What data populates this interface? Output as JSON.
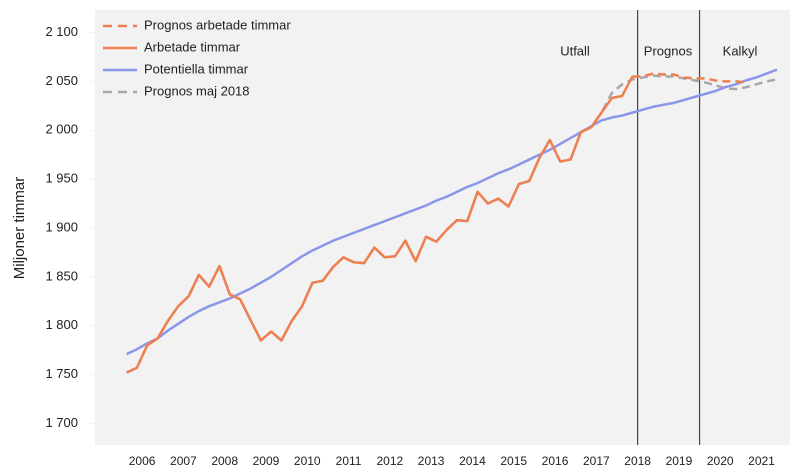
{
  "chart_data": {
    "type": "line",
    "ylabel": "Miljoner timmar",
    "annotations": [
      "Utfall",
      "Prognos",
      "Kalkyl"
    ],
    "vlines": [
      2018.5,
      2020
    ],
    "xlim": [
      2005.36,
      2022.19
    ],
    "ylim": [
      1678,
      2123
    ],
    "xticks": [
      {
        "value": 2006.5,
        "label": "2006"
      },
      {
        "value": 2007.5,
        "label": "2007"
      },
      {
        "value": 2008.5,
        "label": "2008"
      },
      {
        "value": 2009.5,
        "label": "2009"
      },
      {
        "value": 2010.5,
        "label": "2010"
      },
      {
        "value": 2011.5,
        "label": "2011"
      },
      {
        "value": 2012.5,
        "label": "2012"
      },
      {
        "value": 2013.5,
        "label": "2013"
      },
      {
        "value": 2014.5,
        "label": "2014"
      },
      {
        "value": 2015.5,
        "label": "2015"
      },
      {
        "value": 2016.5,
        "label": "2016"
      },
      {
        "value": 2017.5,
        "label": "2017"
      },
      {
        "value": 2018.5,
        "label": "2018"
      },
      {
        "value": 2019.5,
        "label": "2019"
      },
      {
        "value": 2020.5,
        "label": "2020"
      },
      {
        "value": 2021.5,
        "label": "2021"
      }
    ],
    "yticks": [
      {
        "value": 1700,
        "label": "1 700"
      },
      {
        "value": 1750,
        "label": "1 750"
      },
      {
        "value": 1800,
        "label": "1 800"
      },
      {
        "value": 1850,
        "label": "1 850"
      },
      {
        "value": 1900,
        "label": "1 900"
      },
      {
        "value": 1950,
        "label": "1 950"
      },
      {
        "value": 2000,
        "label": "2 000"
      },
      {
        "value": 2050,
        "label": "2 050"
      },
      {
        "value": 2100,
        "label": "2 100"
      }
    ],
    "grid": false,
    "legend": "upper left",
    "series": [
      {
        "name": "Prognos arbetade timmar",
        "color": "#f07f50",
        "dashed": true,
        "x": [
          2018.375,
          2018.625,
          2018.875,
          2019.125,
          2019.375,
          2019.625,
          2019.875,
          2020.125,
          2020.375,
          2020.625,
          2020.875,
          2021.125
        ],
        "values": [
          2055,
          2055,
          2058,
          2057,
          2057,
          2054,
          2053,
          2053,
          2051,
          2050,
          2050,
          2049
        ]
      },
      {
        "name": "Arbetade timmar",
        "color": "#f07f50",
        "dashed": false,
        "x": [
          2006.125,
          2006.375,
          2006.625,
          2006.875,
          2007.125,
          2007.375,
          2007.625,
          2007.875,
          2008.125,
          2008.375,
          2008.625,
          2008.875,
          2009.125,
          2009.375,
          2009.625,
          2009.875,
          2010.125,
          2010.375,
          2010.625,
          2010.875,
          2011.125,
          2011.375,
          2011.625,
          2011.875,
          2012.125,
          2012.375,
          2012.625,
          2012.875,
          2013.125,
          2013.375,
          2013.625,
          2013.875,
          2014.125,
          2014.375,
          2014.625,
          2014.875,
          2015.125,
          2015.375,
          2015.625,
          2015.875,
          2016.125,
          2016.375,
          2016.625,
          2016.875,
          2017.125,
          2017.375,
          2017.625,
          2017.875,
          2018.125,
          2018.375
        ],
        "values": [
          1752,
          1757,
          1780,
          1787,
          1805,
          1820,
          1830,
          1852,
          1840,
          1861,
          1832,
          1827,
          1806,
          1785,
          1794,
          1785,
          1805,
          1820,
          1844,
          1846,
          1860,
          1870,
          1865,
          1864,
          1880,
          1870,
          1871,
          1887,
          1866,
          1891,
          1886,
          1898,
          1908,
          1907,
          1937,
          1925,
          1930,
          1922,
          1945,
          1948,
          1972,
          1990,
          1968,
          1970,
          1998,
          2003,
          2018,
          2033,
          2035,
          2055
        ]
      },
      {
        "name": "Potentiella timmar",
        "color": "#8c96e8",
        "dashed": false,
        "x": [
          2006.125,
          2006.375,
          2006.625,
          2006.875,
          2007.125,
          2007.375,
          2007.625,
          2007.875,
          2008.125,
          2008.375,
          2008.625,
          2008.875,
          2009.125,
          2009.375,
          2009.625,
          2009.875,
          2010.125,
          2010.375,
          2010.625,
          2010.875,
          2011.125,
          2011.375,
          2011.625,
          2011.875,
          2012.125,
          2012.375,
          2012.625,
          2012.875,
          2013.125,
          2013.375,
          2013.625,
          2013.875,
          2014.125,
          2014.375,
          2014.625,
          2014.875,
          2015.125,
          2015.375,
          2015.625,
          2015.875,
          2016.125,
          2016.375,
          2016.625,
          2016.875,
          2017.125,
          2017.375,
          2017.625,
          2017.875,
          2018.125,
          2018.375,
          2018.625,
          2018.875,
          2019.125,
          2019.375,
          2019.625,
          2019.875,
          2020.125,
          2020.375,
          2020.625,
          2020.875,
          2021.125,
          2021.375,
          2021.625,
          2021.875
        ],
        "values": [
          1771,
          1776,
          1782,
          1787,
          1795,
          1802,
          1809,
          1815,
          1820,
          1824,
          1828,
          1833,
          1838,
          1844,
          1850,
          1857,
          1864,
          1871,
          1877,
          1882,
          1887,
          1891,
          1895,
          1899,
          1903,
          1907,
          1911,
          1915,
          1919,
          1923,
          1928,
          1932,
          1937,
          1942,
          1946,
          1951,
          1956,
          1960,
          1965,
          1970,
          1975,
          1980,
          1986,
          1992,
          1998,
          2004,
          2010,
          2013,
          2015,
          2018,
          2021,
          2024,
          2026,
          2028,
          2031,
          2034,
          2037,
          2040,
          2044,
          2047,
          2051,
          2054,
          2058,
          2062
        ]
      },
      {
        "name": "Prognos maj 2018",
        "color": "#a8a8a8",
        "dashed": true,
        "x": [
          2006.125,
          2006.375,
          2006.625,
          2006.875,
          2007.125,
          2007.375,
          2007.625,
          2007.875,
          2008.125,
          2008.375,
          2008.625,
          2008.875,
          2009.125,
          2009.375,
          2009.625,
          2009.875,
          2010.125,
          2010.375,
          2010.625,
          2010.875,
          2011.125,
          2011.375,
          2011.625,
          2011.875,
          2012.125,
          2012.375,
          2012.625,
          2012.875,
          2013.125,
          2013.375,
          2013.625,
          2013.875,
          2014.125,
          2014.375,
          2014.625,
          2014.875,
          2015.125,
          2015.375,
          2015.625,
          2015.875,
          2016.125,
          2016.375,
          2016.625,
          2016.875,
          2017.125,
          2017.375,
          2017.625,
          2017.875,
          2018.125,
          2018.375,
          2018.625,
          2018.875,
          2019.125,
          2019.375,
          2019.625,
          2019.875,
          2020.125,
          2020.375,
          2020.625,
          2020.875,
          2021.125,
          2021.375,
          2021.625,
          2021.875
        ],
        "values": [
          1752,
          1757,
          1780,
          1787,
          1805,
          1820,
          1830,
          1852,
          1840,
          1861,
          1832,
          1827,
          1806,
          1785,
          1794,
          1785,
          1805,
          1820,
          1844,
          1846,
          1860,
          1870,
          1865,
          1864,
          1880,
          1870,
          1871,
          1887,
          1866,
          1891,
          1886,
          1898,
          1908,
          1907,
          1937,
          1925,
          1930,
          1922,
          1945,
          1948,
          1972,
          1990,
          1968,
          1970,
          1998,
          2003,
          2018,
          2038,
          2047,
          2052,
          2054,
          2056,
          2055,
          2055,
          2053,
          2051,
          2049,
          2046,
          2043,
          2042,
          2044,
          2047,
          2050,
          2052
        ]
      }
    ]
  }
}
